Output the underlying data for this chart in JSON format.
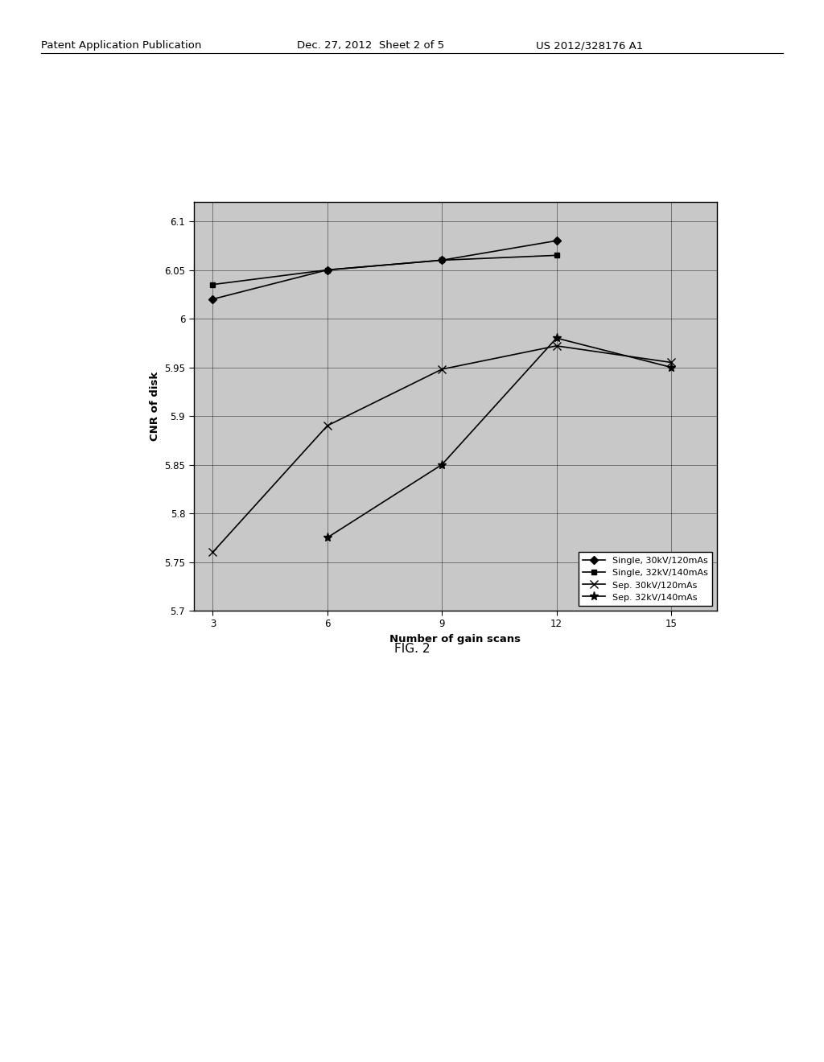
{
  "header_left": "Patent Application Publication",
  "header_mid": "Dec. 27, 2012  Sheet 2 of 5",
  "header_right": "US 2012/328176 A1",
  "fig_label": "FIG. 2",
  "xlabel": "Number of gain scans",
  "ylabel": "CNR of disk",
  "xlim": [
    2.5,
    16.2
  ],
  "ylim": [
    5.7,
    6.12
  ],
  "xticks": [
    3,
    6,
    9,
    12,
    15
  ],
  "ytick_labels": [
    "5.7",
    "5.75",
    "5.8",
    "5.85",
    "5.9",
    "5.95",
    "6",
    "6.05",
    "6.1"
  ],
  "ytick_vals": [
    5.7,
    5.75,
    5.8,
    5.85,
    5.9,
    5.95,
    6.0,
    6.05,
    6.1
  ],
  "series": [
    {
      "label": "Single, 30kV/120mAs",
      "x": [
        3,
        6,
        9,
        12
      ],
      "y": [
        6.02,
        6.05,
        6.06,
        6.08
      ],
      "marker": "D",
      "markersize": 5
    },
    {
      "label": "Single, 32kV/140mAs",
      "x": [
        3,
        6,
        9,
        12
      ],
      "y": [
        6.035,
        6.05,
        6.06,
        6.065
      ],
      "marker": "s",
      "markersize": 5
    },
    {
      "label": "Sep. 30kV/120mAs",
      "x": [
        3,
        6,
        9,
        12,
        15
      ],
      "y": [
        5.76,
        5.89,
        5.948,
        5.972,
        5.955
      ],
      "marker": "x",
      "markersize": 7
    },
    {
      "label": "Sep. 32kV/140mAs",
      "x": [
        6,
        9,
        12,
        15
      ],
      "y": [
        5.775,
        5.85,
        5.98,
        5.95
      ],
      "marker": "*",
      "markersize": 8
    }
  ],
  "plot_bg_color": "#c8c8c8",
  "fig_bg_color": "#ffffff",
  "line_color": "#000000",
  "linewidth": 1.2
}
